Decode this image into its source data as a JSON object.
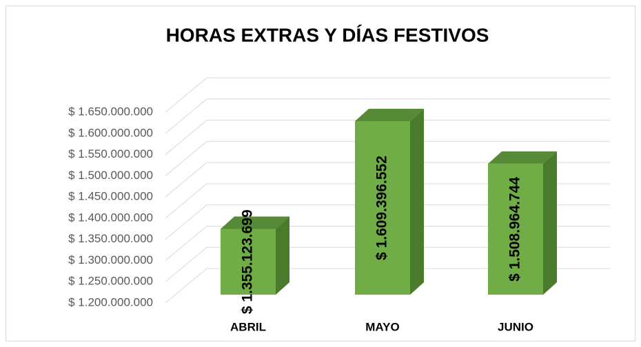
{
  "chart_data": {
    "type": "bar3d",
    "title": "HORAS EXTRAS Y DÍAS FESTIVOS",
    "categories": [
      "ABRIL",
      "MAYO",
      "JUNIO"
    ],
    "values": [
      1355123699,
      1609396552,
      1508964744
    ],
    "value_labels": [
      "$ 1.355.123.699",
      "$ 1.609.396.552",
      "$ 1.508.964.744"
    ],
    "color": "#70ad47",
    "ylim": [
      1200000000,
      1650000000
    ],
    "yticks": [
      {
        "value": 1200000000,
        "label": "$ 1.200.000.000"
      },
      {
        "value": 1250000000,
        "label": "$ 1.250.000.000"
      },
      {
        "value": 1300000000,
        "label": "$ 1.300.000.000"
      },
      {
        "value": 1350000000,
        "label": "$ 1.350.000.000"
      },
      {
        "value": 1400000000,
        "label": "$ 1.400.000.000"
      },
      {
        "value": 1450000000,
        "label": "$ 1.450.000.000"
      },
      {
        "value": 1500000000,
        "label": "$ 1.500.000.000"
      },
      {
        "value": 1550000000,
        "label": "$ 1.550.000.000"
      },
      {
        "value": 1600000000,
        "label": "$ 1.600.000.000"
      },
      {
        "value": 1650000000,
        "label": "$ 1.650.000.000"
      }
    ],
    "grid": true
  }
}
